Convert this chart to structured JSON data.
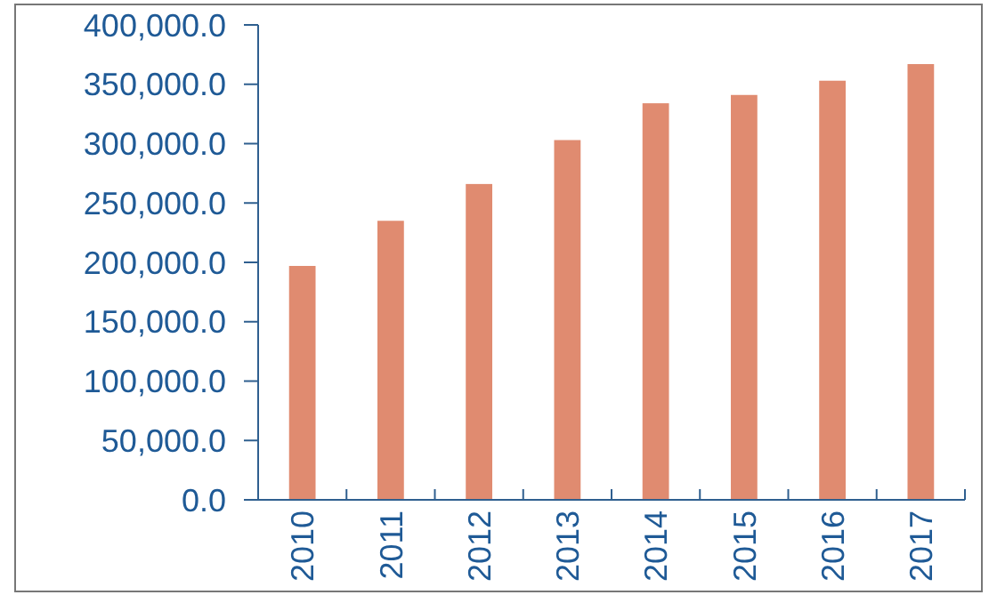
{
  "chart_data": {
    "type": "bar",
    "categories": [
      "2010",
      "2011",
      "2012",
      "2013",
      "2014",
      "2015",
      "2016",
      "2017"
    ],
    "values": [
      197000,
      235000,
      266000,
      303000,
      334000,
      341000,
      353000,
      367000
    ],
    "color": "#e08b70",
    "ylim": [
      0,
      400000
    ],
    "yticks": [
      {
        "value": 0,
        "label": "0.0"
      },
      {
        "value": 50000,
        "label": "50,000.0"
      },
      {
        "value": 100000,
        "label": "100,000.0"
      },
      {
        "value": 150000,
        "label": "150,000.0"
      },
      {
        "value": 200000,
        "label": "200,000.0"
      },
      {
        "value": 250000,
        "label": "250,000.0"
      },
      {
        "value": 300000,
        "label": "300,000.0"
      },
      {
        "value": 350000,
        "label": "350,000.0"
      },
      {
        "value": 400000,
        "label": "400,000.0"
      }
    ],
    "grid": false
  }
}
